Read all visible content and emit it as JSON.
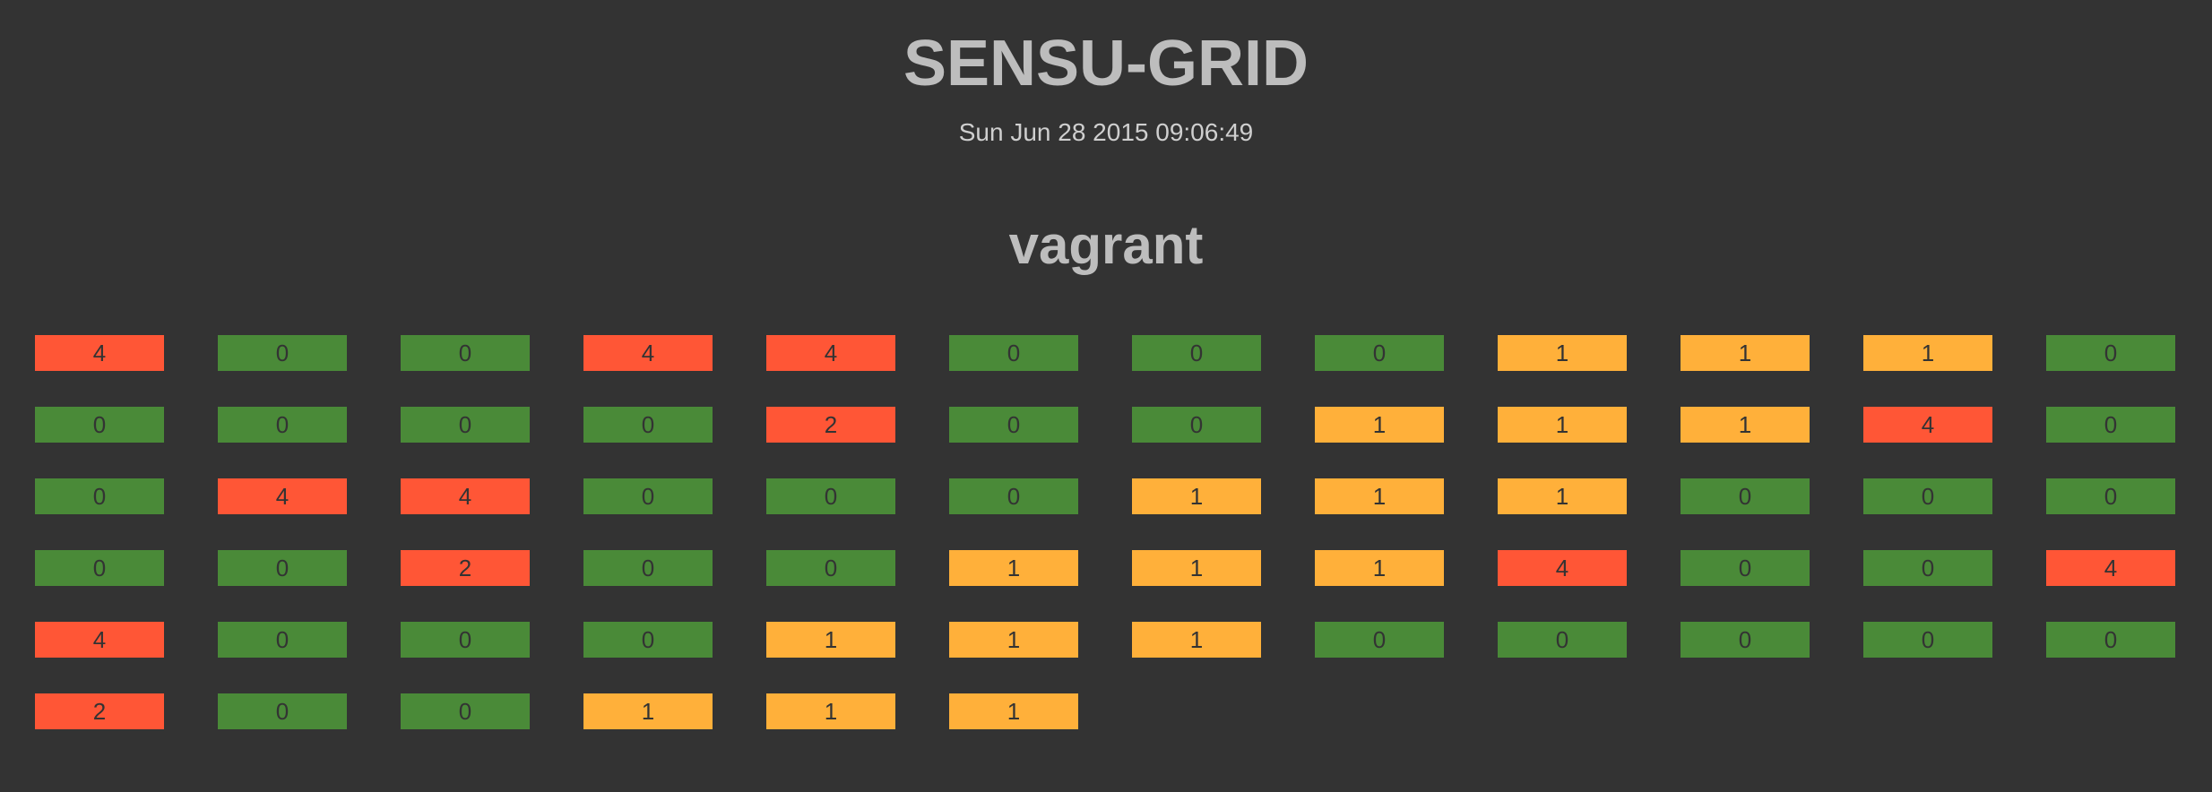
{
  "header": {
    "title": "SENSU-GRID",
    "timestamp": "Sun Jun 28 2015 09:06:49"
  },
  "datacenter": {
    "name": "vagrant",
    "colors": {
      "ok": "#4a8a38",
      "warning": "#ffb03a",
      "critical": "#ff5636"
    },
    "checks": [
      "4",
      "0",
      "0",
      "4",
      "4",
      "0",
      "0",
      "0",
      "1",
      "1",
      "1",
      "0",
      "0",
      "0",
      "0",
      "0",
      "2",
      "0",
      "0",
      "1",
      "1",
      "1",
      "4",
      "0",
      "0",
      "4",
      "4",
      "0",
      "0",
      "0",
      "1",
      "1",
      "1",
      "0",
      "0",
      "0",
      "0",
      "0",
      "2",
      "0",
      "0",
      "1",
      "1",
      "1",
      "4",
      "0",
      "0",
      "4",
      "4",
      "0",
      "0",
      "0",
      "1",
      "1",
      "1",
      "0",
      "0",
      "0",
      "0",
      "0",
      "2",
      "0",
      "0",
      "1",
      "1",
      "1"
    ]
  }
}
